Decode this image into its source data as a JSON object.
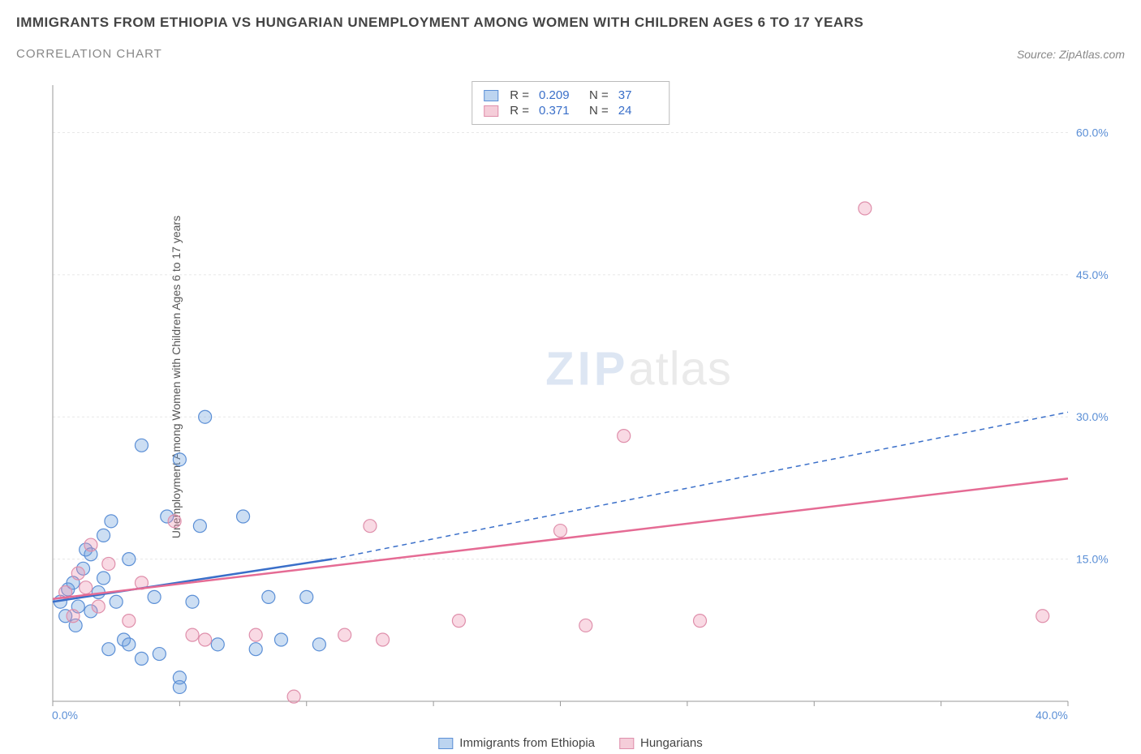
{
  "title": "IMMIGRANTS FROM ETHIOPIA VS HUNGARIAN UNEMPLOYMENT AMONG WOMEN WITH CHILDREN AGES 6 TO 17 YEARS",
  "subtitle": "CORRELATION CHART",
  "source": "Source: ZipAtlas.com",
  "watermark_a": "ZIP",
  "watermark_b": "atlas",
  "y_axis_title": "Unemployment Among Women with Children Ages 6 to 17 years",
  "chart": {
    "type": "scatter",
    "background_color": "#ffffff",
    "grid_color": "#e8e8e8",
    "axis_color": "#999999",
    "x": {
      "min": 0,
      "max": 40,
      "ticks": [
        0,
        5,
        10,
        15,
        20,
        25,
        30,
        35,
        40
      ],
      "labels": {
        "0": "0.0%",
        "40": "40.0%"
      }
    },
    "y": {
      "min": 0,
      "max": 65,
      "ticks": [
        15,
        30,
        45,
        60
      ],
      "labels": {
        "15": "15.0%",
        "30": "30.0%",
        "45": "45.0%",
        "60": "60.0%"
      }
    },
    "series": [
      {
        "name": "Immigrants from Ethiopia",
        "fill": "rgba(110,160,220,0.35)",
        "stroke": "#5b8fd6",
        "swatch_fill": "#bcd4f0",
        "swatch_stroke": "#5b8fd6",
        "r_stat": "0.209",
        "n_stat": "37",
        "trend": {
          "solid_from": [
            0,
            10.5
          ],
          "solid_to": [
            11,
            15
          ],
          "dashed_to": [
            40,
            30.5
          ],
          "color": "#3a6fc9"
        },
        "points": [
          [
            0.3,
            10.5
          ],
          [
            0.5,
            9.0
          ],
          [
            0.6,
            11.8
          ],
          [
            0.8,
            12.5
          ],
          [
            0.9,
            8.0
          ],
          [
            1.0,
            10.0
          ],
          [
            1.2,
            14.0
          ],
          [
            1.3,
            16.0
          ],
          [
            1.5,
            9.5
          ],
          [
            1.5,
            15.5
          ],
          [
            1.8,
            11.5
          ],
          [
            2.0,
            13.0
          ],
          [
            2.0,
            17.5
          ],
          [
            2.2,
            5.5
          ],
          [
            2.3,
            19.0
          ],
          [
            2.5,
            10.5
          ],
          [
            2.8,
            6.5
          ],
          [
            3.0,
            15.0
          ],
          [
            3.0,
            6.0
          ],
          [
            3.5,
            4.5
          ],
          [
            3.5,
            27.0
          ],
          [
            4.0,
            11.0
          ],
          [
            4.2,
            5.0
          ],
          [
            4.5,
            19.5
          ],
          [
            5.0,
            25.5
          ],
          [
            5.0,
            2.5
          ],
          [
            5.5,
            10.5
          ],
          [
            5.8,
            18.5
          ],
          [
            6.0,
            30.0
          ],
          [
            6.5,
            6.0
          ],
          [
            7.5,
            19.5
          ],
          [
            8.0,
            5.5
          ],
          [
            8.5,
            11.0
          ],
          [
            9.0,
            6.5
          ],
          [
            10.0,
            11.0
          ],
          [
            10.5,
            6.0
          ],
          [
            5.0,
            1.5
          ]
        ]
      },
      {
        "name": "Hungarians",
        "fill": "rgba(235,140,170,0.32)",
        "stroke": "#df8fab",
        "swatch_fill": "#f5cdd9",
        "swatch_stroke": "#df8fab",
        "r_stat": "0.371",
        "n_stat": "24",
        "trend": {
          "solid_from": [
            0,
            10.8
          ],
          "solid_to": [
            40,
            23.5
          ],
          "color": "#e56b94"
        },
        "points": [
          [
            0.5,
            11.5
          ],
          [
            0.8,
            9.0
          ],
          [
            1.0,
            13.5
          ],
          [
            1.3,
            12.0
          ],
          [
            1.5,
            16.5
          ],
          [
            1.8,
            10.0
          ],
          [
            2.2,
            14.5
          ],
          [
            3.0,
            8.5
          ],
          [
            3.5,
            12.5
          ],
          [
            4.8,
            19.0
          ],
          [
            5.5,
            7.0
          ],
          [
            6.0,
            6.5
          ],
          [
            8.0,
            7.0
          ],
          [
            9.5,
            0.5
          ],
          [
            11.5,
            7.0
          ],
          [
            12.5,
            18.5
          ],
          [
            16.0,
            8.5
          ],
          [
            20.0,
            18.0
          ],
          [
            21.0,
            8.0
          ],
          [
            22.5,
            28.0
          ],
          [
            25.5,
            8.5
          ],
          [
            32.0,
            52.0
          ],
          [
            39.0,
            9.0
          ],
          [
            13.0,
            6.5
          ]
        ]
      }
    ]
  },
  "legend_bottom": [
    {
      "label": "Immigrants from Ethiopia",
      "fill": "#bcd4f0",
      "stroke": "#5b8fd6"
    },
    {
      "label": "Hungarians",
      "fill": "#f5cdd9",
      "stroke": "#df8fab"
    }
  ]
}
